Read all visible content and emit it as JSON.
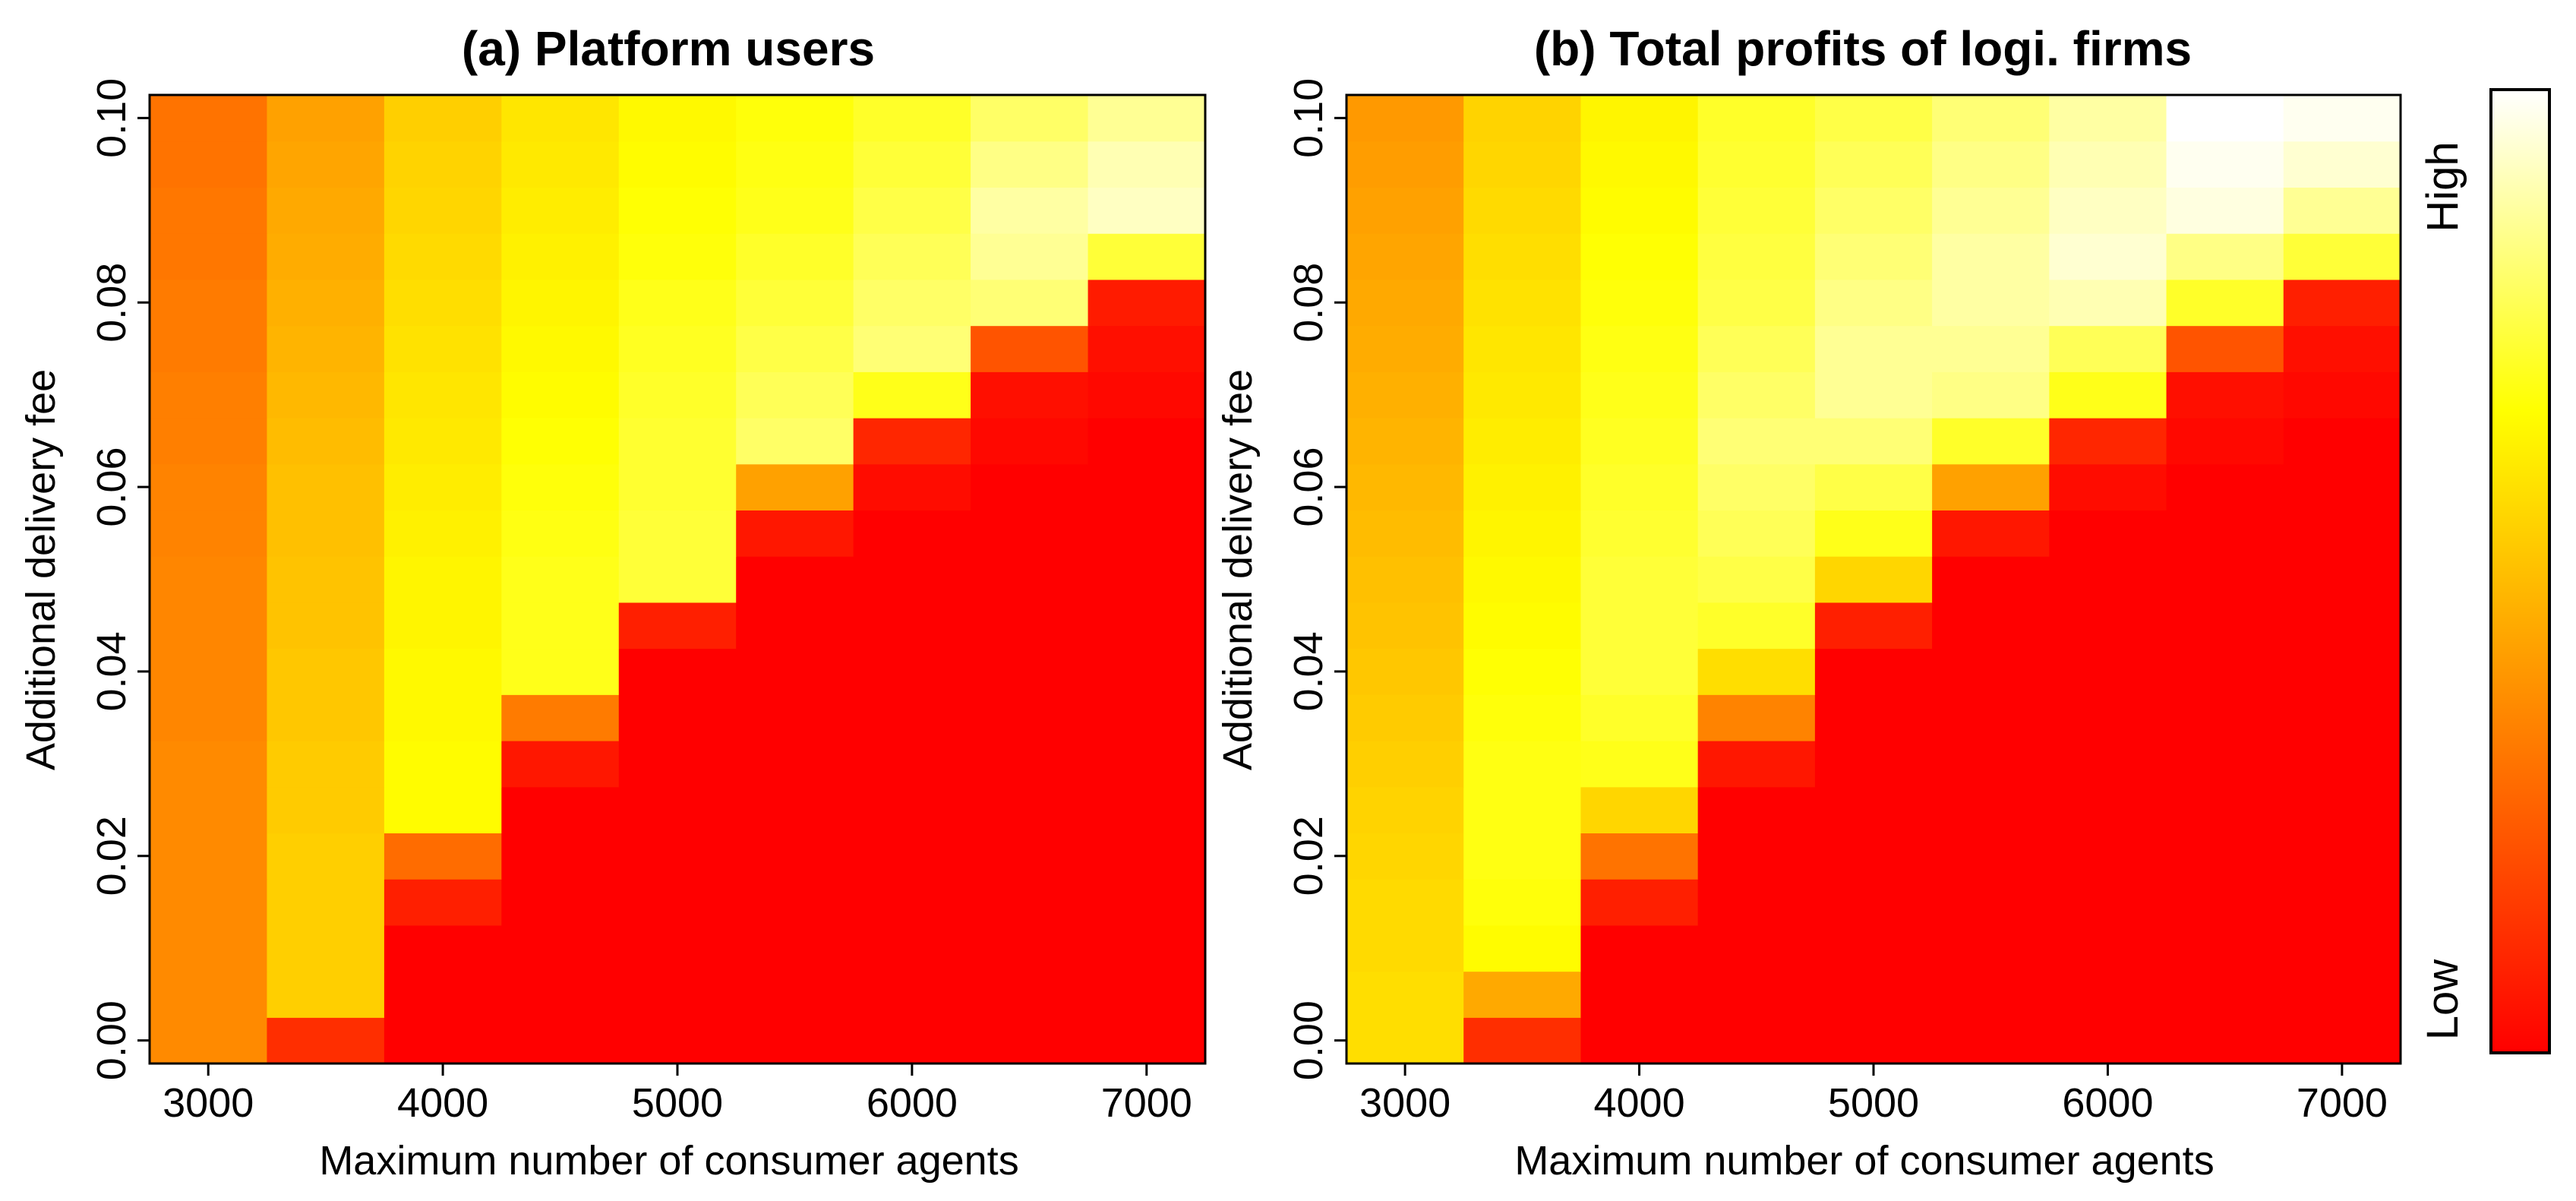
{
  "chart_data": [
    {
      "type": "heatmap",
      "title": "(a) Platform users",
      "xlabel": "Maximum number of consumer agents",
      "ylabel": "Additional delivery fee",
      "x_ticks": [
        "3000",
        "4000",
        "5000",
        "6000",
        "7000"
      ],
      "y_ticks": [
        "0.00",
        "0.02",
        "0.04",
        "0.06",
        "0.08",
        "0.10"
      ],
      "x": [
        3000,
        3500,
        4000,
        4500,
        5000,
        5500,
        6000,
        6500,
        7000
      ],
      "y": [
        0.0,
        0.005,
        0.01,
        0.015,
        0.02,
        0.025,
        0.03,
        0.035,
        0.04,
        0.045,
        0.05,
        0.055,
        0.06,
        0.065,
        0.07,
        0.075,
        0.08,
        0.085,
        0.09,
        0.095,
        0.1
      ],
      "xlim": [
        2750,
        7250
      ],
      "ylim": [
        -0.0025,
        0.1025
      ],
      "grid": false,
      "values": [
        [
          0.36,
          0.12,
          0.0,
          0.0,
          0.0,
          0.0,
          0.0,
          0.0,
          0.0
        ],
        [
          0.36,
          0.54,
          0.0,
          0.0,
          0.0,
          0.0,
          0.0,
          0.0,
          0.0
        ],
        [
          0.36,
          0.54,
          0.0,
          0.0,
          0.0,
          0.0,
          0.0,
          0.0,
          0.0
        ],
        [
          0.36,
          0.54,
          0.08,
          0.0,
          0.0,
          0.0,
          0.0,
          0.0,
          0.0
        ],
        [
          0.36,
          0.54,
          0.28,
          0.0,
          0.0,
          0.0,
          0.0,
          0.0,
          0.0
        ],
        [
          0.36,
          0.53,
          0.66,
          0.0,
          0.0,
          0.0,
          0.0,
          0.0,
          0.0
        ],
        [
          0.36,
          0.53,
          0.66,
          0.06,
          0.0,
          0.0,
          0.0,
          0.0,
          0.0
        ],
        [
          0.35,
          0.52,
          0.65,
          0.32,
          0.0,
          0.0,
          0.0,
          0.0,
          0.0
        ],
        [
          0.35,
          0.52,
          0.65,
          0.7,
          0.0,
          0.0,
          0.0,
          0.0,
          0.0
        ],
        [
          0.35,
          0.51,
          0.64,
          0.7,
          0.08,
          0.0,
          0.0,
          0.0,
          0.0
        ],
        [
          0.35,
          0.51,
          0.64,
          0.7,
          0.74,
          0.0,
          0.0,
          0.0,
          0.0
        ],
        [
          0.34,
          0.5,
          0.63,
          0.69,
          0.74,
          0.06,
          0.0,
          0.0,
          0.0
        ],
        [
          0.34,
          0.5,
          0.62,
          0.68,
          0.73,
          0.42,
          0.03,
          0.0,
          0.0
        ],
        [
          0.33,
          0.49,
          0.61,
          0.67,
          0.73,
          0.8,
          0.1,
          0.02,
          0.0
        ],
        [
          0.33,
          0.48,
          0.6,
          0.66,
          0.72,
          0.78,
          0.7,
          0.04,
          0.02
        ],
        [
          0.32,
          0.47,
          0.59,
          0.65,
          0.71,
          0.76,
          0.82,
          0.22,
          0.04
        ],
        [
          0.32,
          0.46,
          0.58,
          0.64,
          0.7,
          0.74,
          0.8,
          0.82,
          0.07
        ],
        [
          0.31,
          0.45,
          0.57,
          0.63,
          0.68,
          0.72,
          0.78,
          0.86,
          0.74
        ],
        [
          0.31,
          0.44,
          0.56,
          0.62,
          0.67,
          0.7,
          0.76,
          0.88,
          0.92
        ],
        [
          0.3,
          0.43,
          0.55,
          0.61,
          0.66,
          0.69,
          0.74,
          0.84,
          0.9
        ],
        [
          0.3,
          0.42,
          0.54,
          0.6,
          0.65,
          0.68,
          0.72,
          0.8,
          0.86
        ]
      ]
    },
    {
      "type": "heatmap",
      "title": "(b) Total profits of logi. firms",
      "xlabel": "Maximum number of consumer agents",
      "ylabel": "Additional delivery fee",
      "x_ticks": [
        "3000",
        "4000",
        "5000",
        "6000",
        "7000"
      ],
      "y_ticks": [
        "0.00",
        "0.02",
        "0.04",
        "0.06",
        "0.08",
        "0.10"
      ],
      "x": [
        3000,
        3500,
        4000,
        4500,
        5000,
        5500,
        6000,
        6500,
        7000
      ],
      "y": [
        0.0,
        0.005,
        0.01,
        0.015,
        0.02,
        0.025,
        0.03,
        0.035,
        0.04,
        0.045,
        0.05,
        0.055,
        0.06,
        0.065,
        0.07,
        0.075,
        0.08,
        0.085,
        0.09,
        0.095,
        0.1
      ],
      "xlim": [
        2750,
        7250
      ],
      "ylim": [
        -0.0025,
        0.1025
      ],
      "grid": false,
      "values": [
        [
          0.58,
          0.12,
          0.0,
          0.0,
          0.0,
          0.0,
          0.0,
          0.0,
          0.0
        ],
        [
          0.58,
          0.44,
          0.0,
          0.0,
          0.0,
          0.0,
          0.0,
          0.0,
          0.0
        ],
        [
          0.57,
          0.66,
          0.0,
          0.0,
          0.0,
          0.0,
          0.0,
          0.0,
          0.0
        ],
        [
          0.57,
          0.68,
          0.08,
          0.0,
          0.0,
          0.0,
          0.0,
          0.0,
          0.0
        ],
        [
          0.56,
          0.69,
          0.3,
          0.0,
          0.0,
          0.0,
          0.0,
          0.0,
          0.0
        ],
        [
          0.55,
          0.69,
          0.56,
          0.0,
          0.0,
          0.0,
          0.0,
          0.0,
          0.0
        ],
        [
          0.54,
          0.69,
          0.7,
          0.06,
          0.0,
          0.0,
          0.0,
          0.0,
          0.0
        ],
        [
          0.53,
          0.68,
          0.72,
          0.34,
          0.0,
          0.0,
          0.0,
          0.0,
          0.0
        ],
        [
          0.52,
          0.67,
          0.74,
          0.58,
          0.0,
          0.0,
          0.0,
          0.0,
          0.0
        ],
        [
          0.51,
          0.66,
          0.74,
          0.72,
          0.08,
          0.0,
          0.0,
          0.0,
          0.0
        ],
        [
          0.5,
          0.65,
          0.74,
          0.76,
          0.56,
          0.0,
          0.0,
          0.0,
          0.0
        ],
        [
          0.49,
          0.64,
          0.73,
          0.78,
          0.7,
          0.06,
          0.0,
          0.0,
          0.0
        ],
        [
          0.48,
          0.63,
          0.72,
          0.8,
          0.76,
          0.42,
          0.03,
          0.0,
          0.0
        ],
        [
          0.47,
          0.62,
          0.71,
          0.82,
          0.82,
          0.72,
          0.1,
          0.02,
          0.0
        ],
        [
          0.46,
          0.61,
          0.7,
          0.8,
          0.86,
          0.84,
          0.7,
          0.04,
          0.02
        ],
        [
          0.45,
          0.6,
          0.69,
          0.78,
          0.86,
          0.86,
          0.78,
          0.22,
          0.04
        ],
        [
          0.44,
          0.59,
          0.68,
          0.76,
          0.84,
          0.88,
          0.9,
          0.72,
          0.08
        ],
        [
          0.43,
          0.58,
          0.67,
          0.75,
          0.82,
          0.88,
          0.94,
          0.84,
          0.74
        ],
        [
          0.42,
          0.57,
          0.66,
          0.74,
          0.8,
          0.86,
          0.92,
          0.96,
          0.86
        ],
        [
          0.41,
          0.56,
          0.65,
          0.73,
          0.78,
          0.84,
          0.9,
          0.98,
          0.94
        ],
        [
          0.4,
          0.55,
          0.64,
          0.72,
          0.76,
          0.82,
          0.88,
          1.0,
          0.98
        ]
      ]
    }
  ],
  "colorbar": {
    "high_label": "High",
    "low_label": "Low",
    "stops": [
      "#ff0000",
      "#ff8000",
      "#ffff00",
      "#ffffff"
    ]
  }
}
